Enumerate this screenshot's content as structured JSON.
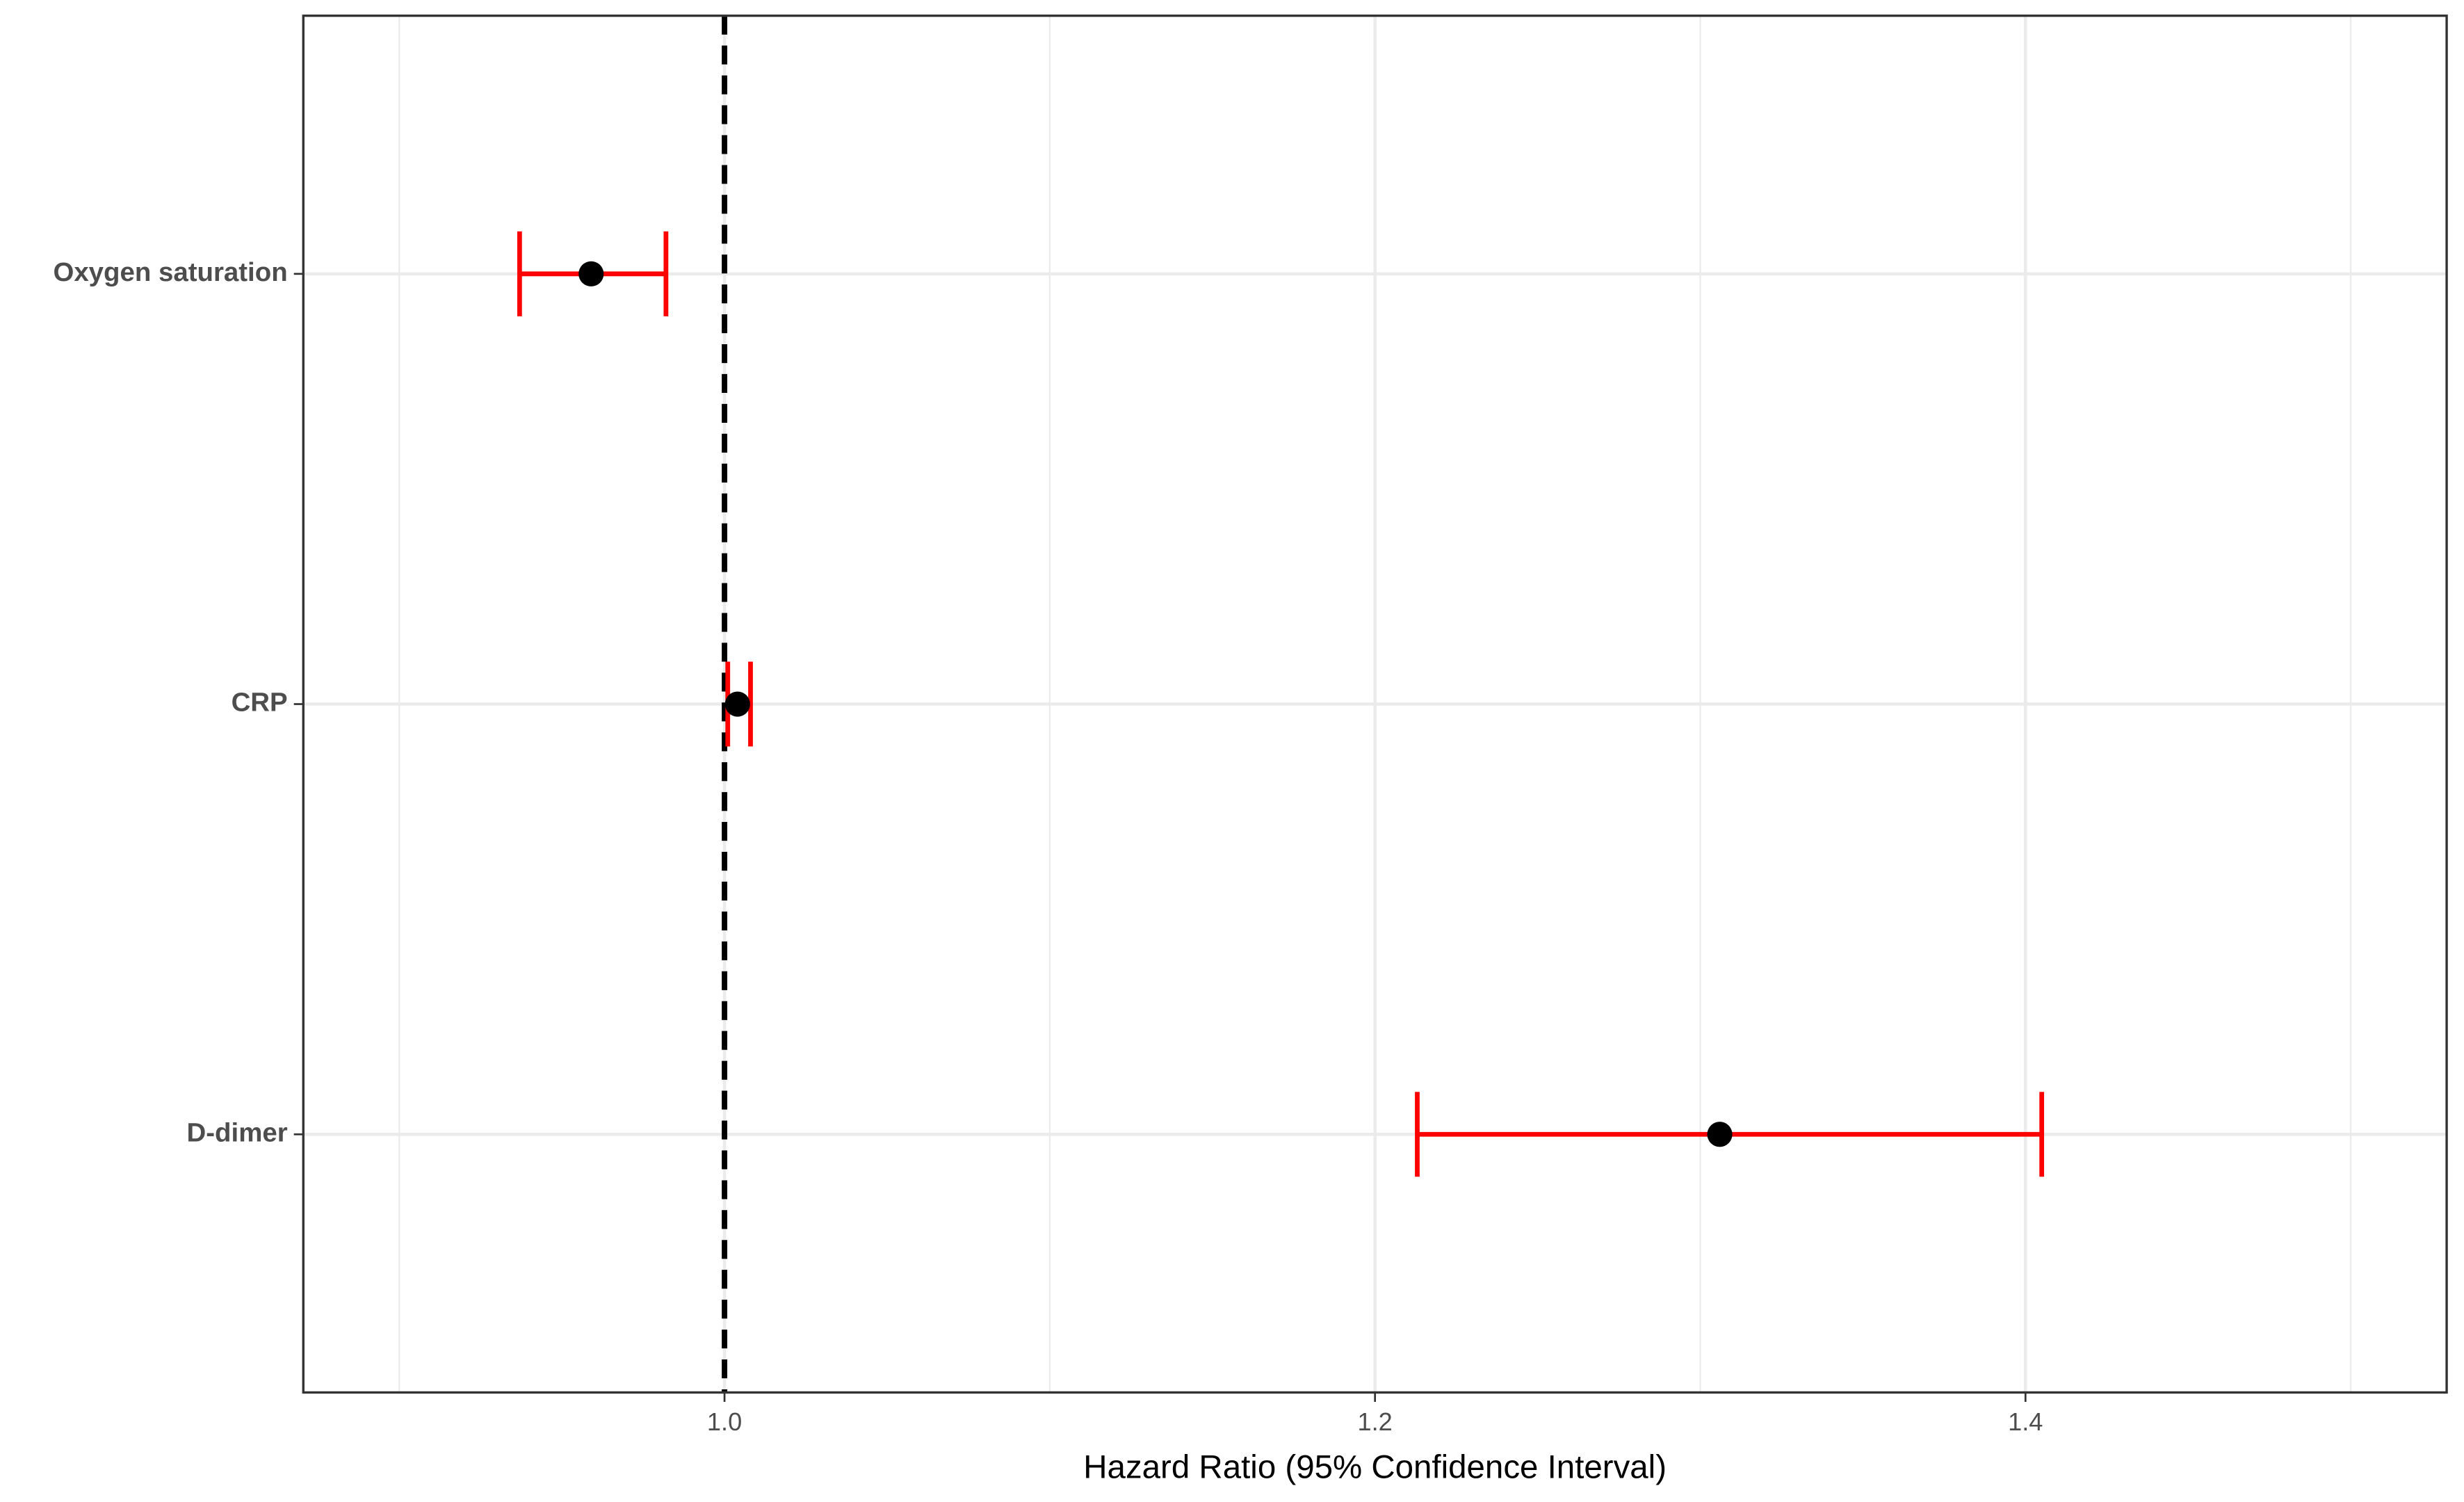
{
  "chart_data": {
    "type": "forest",
    "x_label": "Hazard Ratio (95% Confidence Interval)",
    "categories": [
      "Oxygen saturation",
      "CRP",
      "D-dimer"
    ],
    "values": [
      0.959,
      1.004,
      1.306
    ],
    "lower": [
      0.937,
      1.001,
      1.213
    ],
    "upper": [
      0.982,
      1.008,
      1.405
    ],
    "point_color": "#000000",
    "ci_color": "#ff0000",
    "reference_line": 1,
    "xlim": [
      0.8705,
      1.5295
    ],
    "xticks": [
      {
        "value": 1,
        "label": "1.0"
      },
      {
        "value": 1.2,
        "label": "1.2"
      },
      {
        "value": 1.4,
        "label": "1.4"
      }
    ],
    "minor_xticks": [
      0.9,
      1.1,
      1.3,
      1.5
    ],
    "grid": true
  }
}
